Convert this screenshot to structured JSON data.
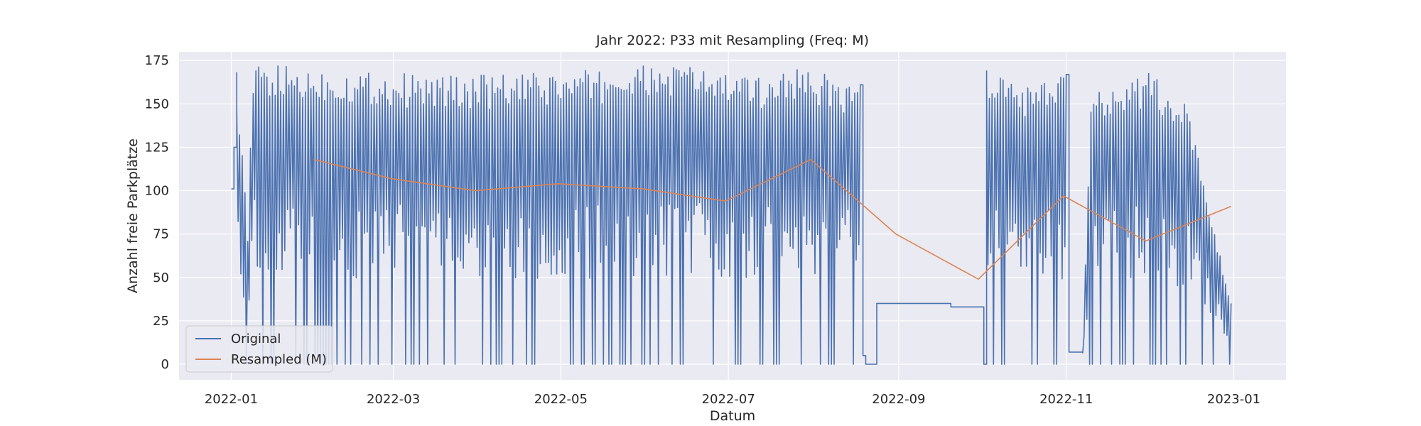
{
  "chart_data": {
    "type": "line",
    "title": "Jahr 2022: P33 mit Resampling (Freq: M)",
    "xlabel": "Datum",
    "ylabel": "Anzahl freie Parkplätze",
    "xlim": [
      "2021-12-13",
      "2023-01-20"
    ],
    "ylim": [
      -9,
      180
    ],
    "x_ticks": [
      "2022-01",
      "2022-03",
      "2022-05",
      "2022-07",
      "2022-09",
      "2022-11",
      "2023-01"
    ],
    "y_ticks": [
      0,
      25,
      50,
      75,
      100,
      125,
      150,
      175
    ],
    "grid": true,
    "legend_position": "lower-left",
    "series": [
      {
        "name": "Original",
        "color": "#4c72b0",
        "style": "dense-daily-oscillation",
        "points": [
          [
            "2022-01-01",
            101
          ],
          [
            "2022-01-02",
            125
          ],
          [
            "2022-01-03",
            168
          ],
          [
            "2022-01-05",
            130
          ],
          [
            "2022-01-07",
            77
          ],
          [
            "2022-01-09",
            173
          ],
          [
            "2022-01-20",
            172
          ],
          [
            "2022-02-10",
            170
          ],
          [
            "2022-03-15",
            167
          ],
          [
            "2022-04-15",
            167
          ],
          [
            "2022-05-15",
            170
          ],
          [
            "2022-06-15",
            174
          ],
          [
            "2022-07-10",
            165
          ],
          [
            "2022-07-25",
            173
          ],
          [
            "2022-08-18",
            161
          ],
          [
            "2022-08-19",
            5
          ],
          [
            "2022-08-20",
            0
          ],
          [
            "2022-08-23",
            0
          ],
          [
            "2022-08-24",
            35
          ],
          [
            "2022-09-19",
            35
          ],
          [
            "2022-09-20",
            33
          ],
          [
            "2022-10-01",
            33
          ],
          [
            "2022-10-02",
            0
          ],
          [
            "2022-10-03",
            169
          ],
          [
            "2022-10-20",
            160
          ],
          [
            "2022-11-01",
            167
          ],
          [
            "2022-11-02",
            7
          ],
          [
            "2022-11-07",
            7
          ],
          [
            "2022-11-10",
            160
          ],
          [
            "2022-12-01",
            168
          ],
          [
            "2022-12-15",
            150
          ],
          [
            "2022-12-31",
            35
          ]
        ]
      },
      {
        "name": "Resampled (M)",
        "color": "#dd8452",
        "x": [
          "2022-01-31",
          "2022-02-28",
          "2022-03-31",
          "2022-04-30",
          "2022-05-31",
          "2022-06-30",
          "2022-07-31",
          "2022-08-31",
          "2022-09-30",
          "2022-10-31",
          "2022-11-30",
          "2022-12-31"
        ],
        "y": [
          118,
          107,
          100,
          104,
          101,
          94,
          118,
          75,
          49,
          97,
          71,
          91
        ]
      }
    ]
  }
}
